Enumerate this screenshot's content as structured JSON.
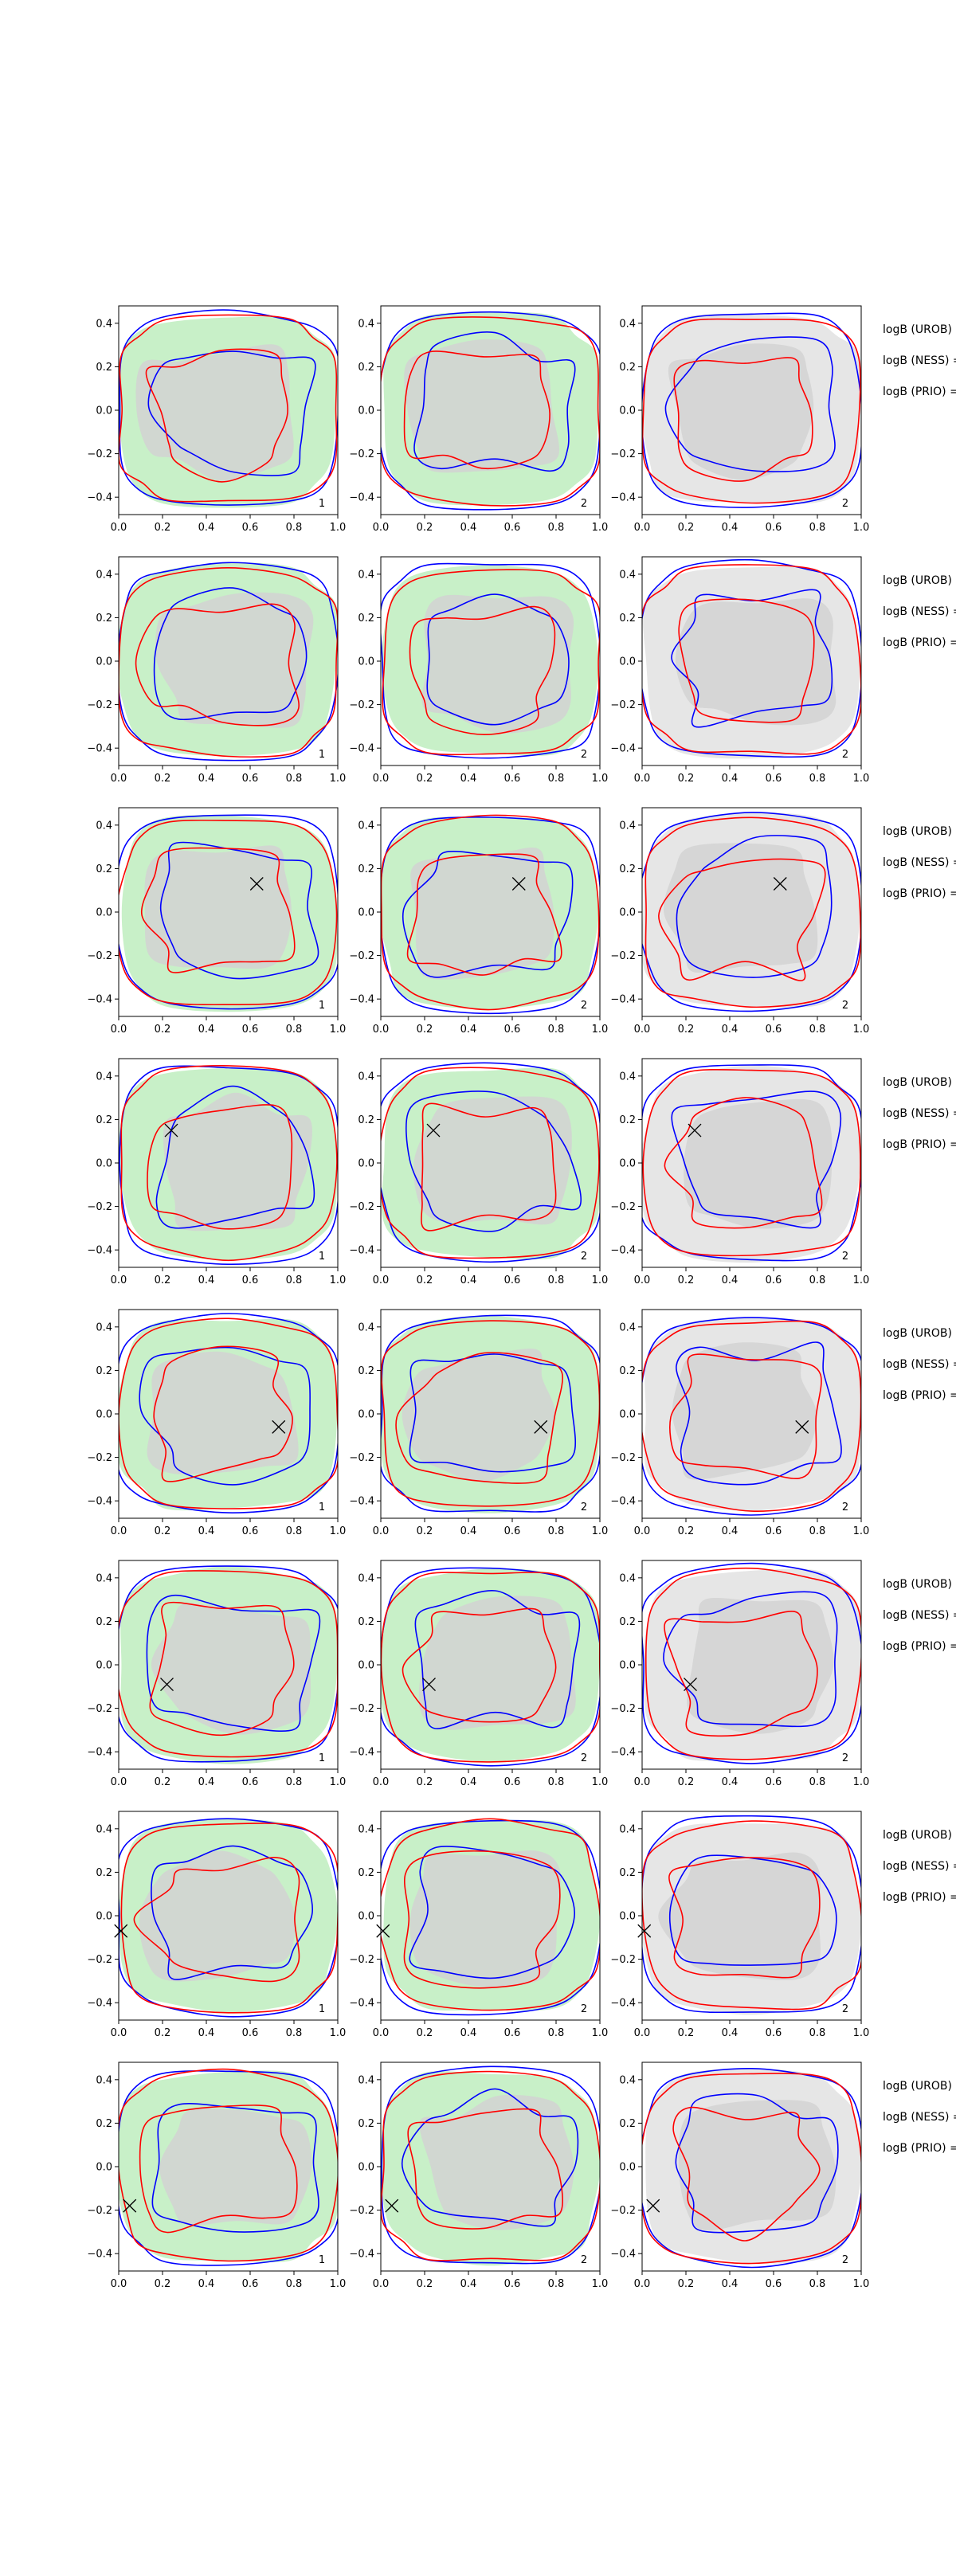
{
  "chart_data": {
    "type": "contour",
    "layout": {
      "rows": 8,
      "cols": 3
    },
    "xlim": [
      0,
      1
    ],
    "ylim": [
      -0.48,
      0.48
    ],
    "x_ticks": [
      "0.0",
      "0.2",
      "0.4",
      "0.6",
      "0.8",
      "1.0"
    ],
    "x_tick_values": [
      0,
      0.2,
      0.4,
      0.6,
      0.8,
      1.0
    ],
    "y_ticks": [
      "0.4",
      "0.2",
      "0.0",
      "−0.2",
      "−0.4"
    ],
    "y_tick_values": [
      0.4,
      0.2,
      0.0,
      -0.2,
      -0.4
    ],
    "side_labels": [
      "logB (UROB) =",
      "logB (NESS) =",
      "logB (PRIO) ="
    ],
    "column_fill_colors": [
      "#c8f0c8",
      "#c8f0c8",
      "#e6e6e6"
    ],
    "inner_fill_color": "#d2d2d2",
    "line_colors": {
      "blue": "#0000ff",
      "red": "#ff0000"
    },
    "panels": [
      {
        "row": 1,
        "col": 1,
        "label": "1",
        "marker": null
      },
      {
        "row": 1,
        "col": 2,
        "label": "2",
        "marker": null
      },
      {
        "row": 1,
        "col": 3,
        "label": "2",
        "marker": null
      },
      {
        "row": 2,
        "col": 1,
        "label": "1",
        "marker": null
      },
      {
        "row": 2,
        "col": 2,
        "label": "2",
        "marker": null
      },
      {
        "row": 2,
        "col": 3,
        "label": "2",
        "marker": null
      },
      {
        "row": 3,
        "col": 1,
        "label": "1",
        "marker": [
          0.63,
          0.13
        ]
      },
      {
        "row": 3,
        "col": 2,
        "label": "2",
        "marker": [
          0.63,
          0.13
        ]
      },
      {
        "row": 3,
        "col": 3,
        "label": "2",
        "marker": [
          0.63,
          0.13
        ]
      },
      {
        "row": 4,
        "col": 1,
        "label": "1",
        "marker": [
          0.24,
          0.15
        ]
      },
      {
        "row": 4,
        "col": 2,
        "label": "2",
        "marker": [
          0.24,
          0.15
        ]
      },
      {
        "row": 4,
        "col": 3,
        "label": "2",
        "marker": [
          0.24,
          0.15
        ]
      },
      {
        "row": 5,
        "col": 1,
        "label": "1",
        "marker": [
          0.73,
          -0.06
        ]
      },
      {
        "row": 5,
        "col": 2,
        "label": "2",
        "marker": [
          0.73,
          -0.06
        ]
      },
      {
        "row": 5,
        "col": 3,
        "label": "2",
        "marker": [
          0.73,
          -0.06
        ]
      },
      {
        "row": 6,
        "col": 1,
        "label": "1",
        "marker": [
          0.22,
          -0.09
        ]
      },
      {
        "row": 6,
        "col": 2,
        "label": "2",
        "marker": [
          0.22,
          -0.09
        ]
      },
      {
        "row": 6,
        "col": 3,
        "label": "2",
        "marker": [
          0.22,
          -0.09
        ]
      },
      {
        "row": 7,
        "col": 1,
        "label": "1",
        "marker": [
          0.01,
          -0.07
        ]
      },
      {
        "row": 7,
        "col": 2,
        "label": "2",
        "marker": [
          0.01,
          -0.07
        ]
      },
      {
        "row": 7,
        "col": 3,
        "label": "2",
        "marker": [
          0.01,
          -0.07
        ]
      },
      {
        "row": 8,
        "col": 1,
        "label": "1",
        "marker": [
          0.05,
          -0.18
        ]
      },
      {
        "row": 8,
        "col": 2,
        "label": "2",
        "marker": [
          0.05,
          -0.18
        ]
      },
      {
        "row": 8,
        "col": 3,
        "label": "2",
        "marker": [
          0.05,
          -0.18
        ]
      }
    ]
  }
}
